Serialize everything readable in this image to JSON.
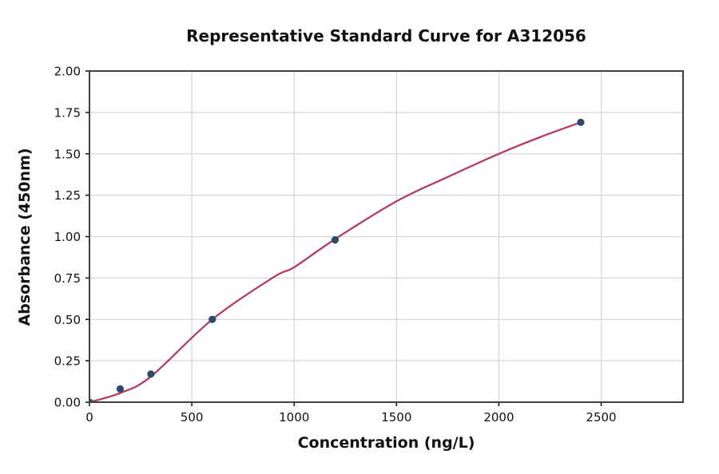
{
  "chart_data": {
    "type": "scatter",
    "title": "Representative Standard Curve for A312056",
    "xlabel": "Concentration (ng/L)",
    "ylabel": "Absorbance (450nm)",
    "xlim": [
      0,
      2900
    ],
    "ylim": [
      0,
      2.0
    ],
    "xticks": [
      0,
      500,
      1000,
      1500,
      2000,
      2500
    ],
    "xtick_labels": [
      "0",
      "500",
      "1000",
      "1500",
      "2000",
      "2500"
    ],
    "yticks": [
      0.0,
      0.25,
      0.5,
      0.75,
      1.0,
      1.25,
      1.5,
      1.75,
      2.0
    ],
    "ytick_labels": [
      "0.00",
      "0.25",
      "0.50",
      "0.75",
      "1.00",
      "1.25",
      "1.50",
      "1.75",
      "2.00"
    ],
    "grid": true,
    "legend": "none",
    "points": {
      "x": [
        0,
        150,
        300,
        600,
        1200,
        2400
      ],
      "y": [
        0.0,
        0.08,
        0.17,
        0.5,
        0.98,
        1.69
      ]
    },
    "fitted_curve_samples": {
      "x": [
        0,
        150,
        300,
        600,
        900,
        1000,
        1200,
        1500,
        1750,
        2000,
        2200,
        2400
      ],
      "y": [
        0.0,
        0.055,
        0.155,
        0.5,
        0.755,
        0.815,
        0.985,
        1.213,
        1.36,
        1.5,
        1.6,
        1.69
      ]
    },
    "colors": {
      "curve": "#b13d66",
      "points": "#2e4a6b",
      "grid": "#d6d6d6",
      "spine": "#404040",
      "tick": "#1a1a1a",
      "text": "#111111",
      "background": "#ffffff"
    }
  }
}
